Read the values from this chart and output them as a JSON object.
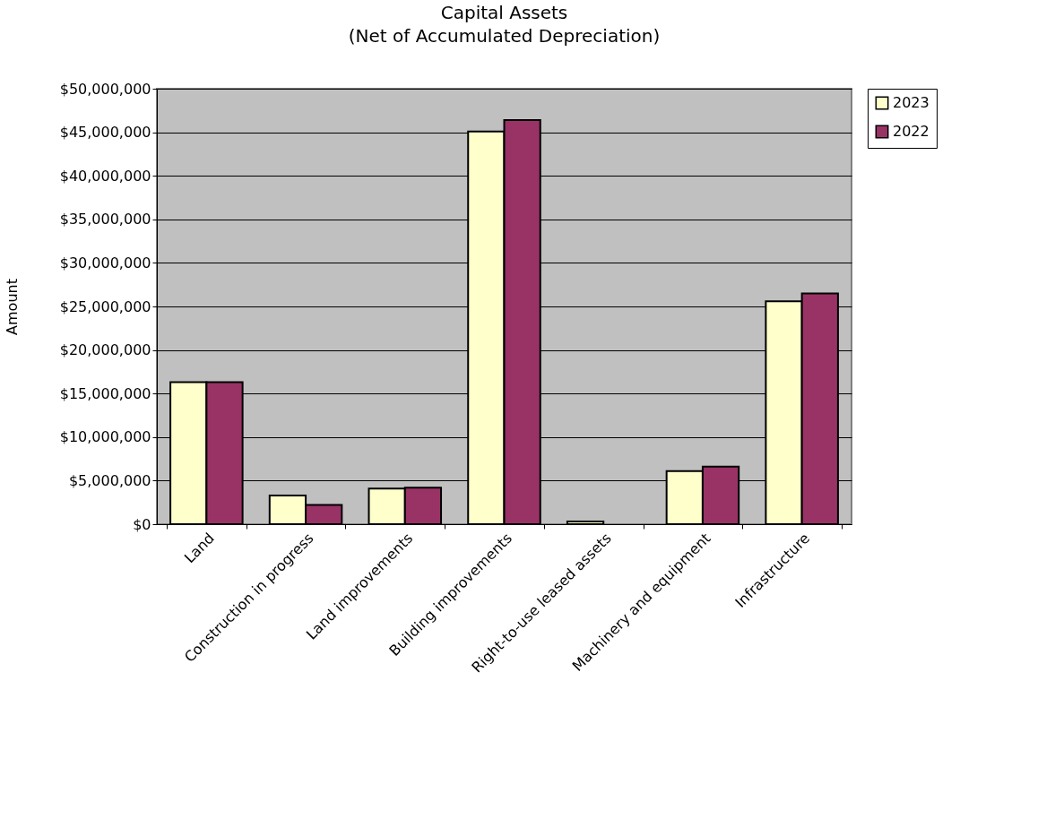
{
  "chart_data": {
    "type": "bar",
    "title": "Capital Assets",
    "subtitle": "(Net of Accumulated Depreciation)",
    "ylabel": "Amount",
    "categories": [
      "Land",
      "Construction in progress",
      "Land improvements",
      "Building improvements",
      "Right-to-use leased assets",
      "Machinery and equipment",
      "Infrastructure"
    ],
    "series": [
      {
        "name": "2023",
        "color": "#ffffcc",
        "values": [
          16300000,
          3300000,
          4100000,
          45100000,
          300000,
          6100000,
          25600000
        ]
      },
      {
        "name": "2022",
        "color": "#993366",
        "values": [
          16300000,
          2200000,
          4200000,
          46400000,
          null,
          6600000,
          26500000
        ]
      }
    ],
    "ylim": [
      0,
      50000000
    ],
    "yticks": [
      {
        "value": 0,
        "label": "$0"
      },
      {
        "value": 5000000,
        "label": "$5,000,000"
      },
      {
        "value": 10000000,
        "label": "$10,000,000"
      },
      {
        "value": 15000000,
        "label": "$15,000,000"
      },
      {
        "value": 20000000,
        "label": "$20,000,000"
      },
      {
        "value": 25000000,
        "label": "$25,000,000"
      },
      {
        "value": 30000000,
        "label": "$30,000,000"
      },
      {
        "value": 35000000,
        "label": "$35,000,000"
      },
      {
        "value": 40000000,
        "label": "$40,000,000"
      },
      {
        "value": 45000000,
        "label": "$45,000,000"
      },
      {
        "value": 50000000,
        "label": "$50,000,000"
      }
    ],
    "grid": "y",
    "legend": "right"
  }
}
